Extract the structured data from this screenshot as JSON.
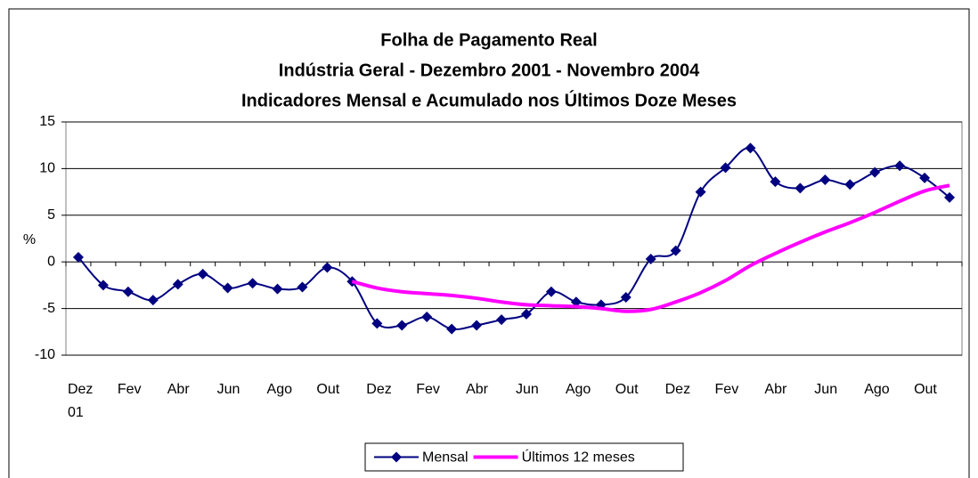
{
  "chart_data": {
    "type": "line",
    "title": [
      "Folha de Pagamento Real",
      "Indústria Geral - Dezembro 2001 - Novembro 2004",
      "Indicadores Mensal e Acumulado nos Últimos Doze Meses"
    ],
    "ylabel": "%",
    "categories": [
      "Dez\n01",
      null,
      "Fev",
      null,
      "Abr",
      null,
      "Jun",
      null,
      "Ago",
      null,
      "Out",
      null,
      "Dez",
      null,
      "Fev",
      null,
      "Abr",
      null,
      "Jun",
      null,
      "Ago",
      null,
      "Out",
      null,
      "Dez",
      null,
      "Fev",
      null,
      "Abr",
      null,
      "Jun",
      null,
      "Ago",
      null,
      "Out",
      null
    ],
    "series": [
      {
        "name": "Mensal",
        "color": "#000080",
        "marker": "diamond",
        "values": [
          0.5,
          -2.5,
          -3.2,
          -4.1,
          -2.4,
          -1.3,
          -2.8,
          -2.3,
          -2.9,
          -2.7,
          -0.6,
          -2.1,
          -6.6,
          -6.8,
          -5.9,
          -7.2,
          -6.8,
          -6.2,
          -5.6,
          -3.2,
          -4.3,
          -4.6,
          -3.8,
          0.3,
          1.2,
          7.5,
          10.1,
          12.2,
          8.6,
          7.9,
          8.8,
          8.3,
          9.6,
          10.3,
          9.0,
          6.9
        ]
      },
      {
        "name": "Últimos 12 meses",
        "color": "#ff00ff",
        "values": [
          null,
          null,
          null,
          null,
          null,
          null,
          null,
          null,
          null,
          null,
          null,
          -2.1,
          -2.8,
          -3.2,
          -3.4,
          -3.6,
          -3.9,
          -4.3,
          -4.6,
          -4.7,
          -4.8,
          -5.0,
          -5.3,
          -5.1,
          -4.3,
          -3.3,
          -2.0,
          -0.4,
          0.9,
          2.1,
          3.2,
          4.2,
          5.3,
          6.5,
          7.6,
          8.2
        ]
      }
    ],
    "ylim": [
      -10,
      15
    ],
    "yticks": [
      -10,
      -5,
      0,
      5,
      10,
      15
    ],
    "grid": true,
    "smooth": true,
    "legend": "bottom"
  }
}
